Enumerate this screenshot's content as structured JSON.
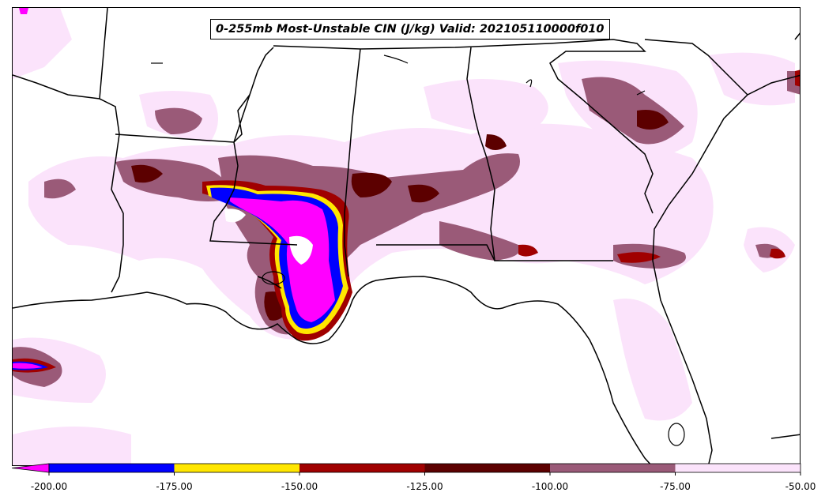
{
  "title": "0-255mb Most-Unstable CIN (J/kg) Valid: 202105110000f010",
  "colors": {
    "lt_-200": "#ff00ff",
    "c_-200_-175": "#0000ff",
    "c_-175_-150": "#ffe600",
    "c_-150_-125": "#a00000",
    "c_-125_-100": "#5c0000",
    "c_-100_-75": "#9a5a78",
    "c_-75_-50": "#fbe3fb",
    "borders": "#000000",
    "background": "#ffffff"
  },
  "colorbar": {
    "ticks": [
      "-200.00",
      "-175.00",
      "-150.00",
      "-125.00",
      "-100.00",
      "-75.00",
      "-50.00"
    ],
    "extend": "min",
    "bins": [
      {
        "range": "< -200",
        "color": "#ff00ff"
      },
      {
        "range": "-200 to -175",
        "color": "#0000ff"
      },
      {
        "range": "-175 to -150",
        "color": "#ffe600"
      },
      {
        "range": "-150 to -125",
        "color": "#a00000"
      },
      {
        "range": "-125 to -100",
        "color": "#5c0000"
      },
      {
        "range": "-100 to -75",
        "color": "#9a5a78"
      },
      {
        "range": "-75 to -50",
        "color": "#fbe3fb"
      }
    ]
  }
}
